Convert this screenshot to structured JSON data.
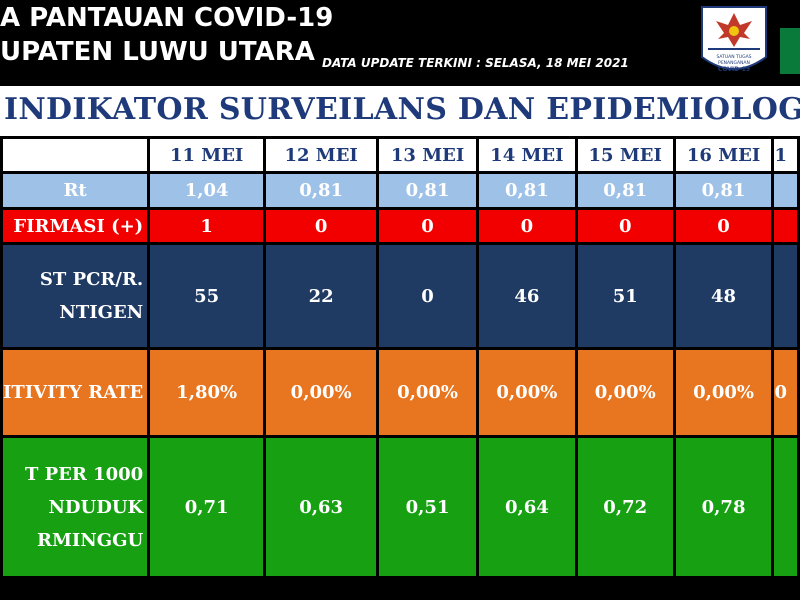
{
  "header": {
    "title_line1": "A PANTAUAN COVID-19",
    "title_line2": "UPATEN LUWU UTARA",
    "update_label": "DATA UPDATE TERKINI : SELASA, 18 MEI 2021",
    "logo_text_line1": "SATUAN TUGAS",
    "logo_text_line2": "PENANGANAN",
    "logo_text_line3": "COVID-19",
    "colors": {
      "background": "#000000",
      "text": "#ffffff"
    }
  },
  "banner": {
    "title": "INDIKATOR SURVEILANS DAN EPIDEMIOLOGI",
    "color": "#1f3a7a"
  },
  "table": {
    "dates": [
      "11 MEI",
      "12 MEI",
      "13 MEI",
      "14 MEI",
      "15 MEI",
      "16 MEI",
      "1"
    ],
    "rows": {
      "rt": {
        "label": "Rt",
        "values": [
          "1,04",
          "0,81",
          "0,81",
          "0,81",
          "0,81",
          "0,81",
          ""
        ],
        "color": "#9ec1e8"
      },
      "konfirmasi": {
        "label": "FIRMASI (+)",
        "values": [
          "1",
          "0",
          "0",
          "0",
          "0",
          "0",
          ""
        ],
        "color": "#f20000"
      },
      "test": {
        "label_line1": "ST PCR/R.",
        "label_line2": "NTIGEN",
        "values": [
          "55",
          "22",
          "0",
          "46",
          "51",
          "48",
          ""
        ],
        "color": "#1f3a63"
      },
      "positivity": {
        "label": "ITIVITY RATE",
        "values": [
          "1,80%",
          "0,00%",
          "0,00%",
          "0,00%",
          "0,00%",
          "0,00%",
          "0"
        ],
        "color": "#e87520"
      },
      "test_per_1000": {
        "label_line1": "T PER 1000",
        "label_line2": "NDUDUK",
        "label_line3": "RMINGGU",
        "values": [
          "0,71",
          "0,63",
          "0,51",
          "0,64",
          "0,72",
          "0,78",
          ""
        ],
        "color": "#16a012"
      }
    }
  }
}
